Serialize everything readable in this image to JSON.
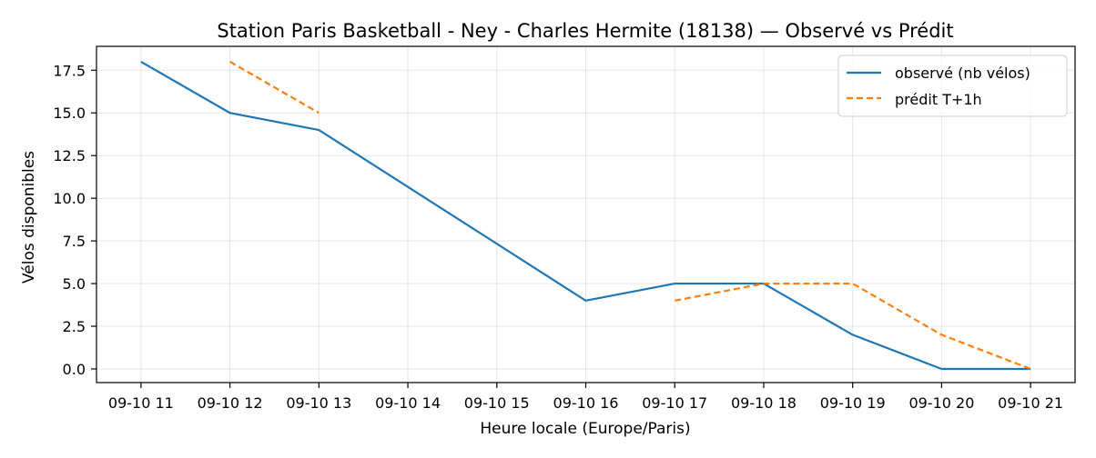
{
  "chart_data": {
    "type": "line",
    "title": "Station Paris Basketball - Ney - Charles Hermite (18138) — Observé vs Prédit",
    "xlabel": "Heure locale (Europe/Paris)",
    "ylabel": "Vélos disponibles",
    "x_ticks": [
      "09-10 11",
      "09-10 12",
      "09-10 13",
      "09-10 14",
      "09-10 15",
      "09-10 16",
      "09-10 17",
      "09-10 18",
      "09-10 19",
      "09-10 20",
      "09-10 21"
    ],
    "y_ticks": [
      "0.0",
      "2.5",
      "5.0",
      "7.5",
      "10.0",
      "12.5",
      "15.0",
      "17.5"
    ],
    "ylim": [
      -0.8,
      18.9
    ],
    "xlim": [
      "09-10 10:30",
      "09-10 21:30"
    ],
    "grid": true,
    "legend_position": "top-right",
    "series": [
      {
        "name": "observé (nb vélos)",
        "color": "#1f77b4",
        "style": "solid",
        "points": [
          {
            "x": "09-10 11",
            "y": 18
          },
          {
            "x": "09-10 12",
            "y": 15
          },
          {
            "x": "09-10 13",
            "y": 14
          },
          {
            "x": "09-10 16",
            "y": 4
          },
          {
            "x": "09-10 17",
            "y": 5
          },
          {
            "x": "09-10 18",
            "y": 5
          },
          {
            "x": "09-10 19",
            "y": 2
          },
          {
            "x": "09-10 20",
            "y": 0
          },
          {
            "x": "09-10 21",
            "y": 0
          }
        ]
      },
      {
        "name": "prédit T+1h",
        "color": "#ff7f0e",
        "style": "dashed",
        "segments": [
          [
            {
              "x": "09-10 12",
              "y": 18
            },
            {
              "x": "09-10 13",
              "y": 15
            }
          ],
          [
            {
              "x": "09-10 17",
              "y": 4
            },
            {
              "x": "09-10 18",
              "y": 5
            },
            {
              "x": "09-10 19",
              "y": 5
            },
            {
              "x": "09-10 20",
              "y": 2
            },
            {
              "x": "09-10 21",
              "y": 0
            }
          ]
        ]
      }
    ]
  }
}
